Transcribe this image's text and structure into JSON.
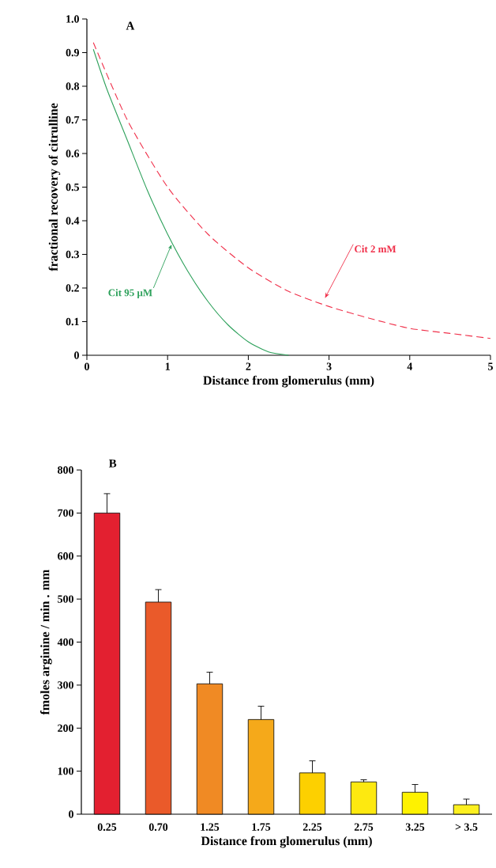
{
  "chart_data": [
    {
      "type": "line",
      "title": "A",
      "xlabel": "Distance from glomerulus (mm)",
      "ylabel": "fractional recovery of citrulline",
      "xlim": [
        0,
        5
      ],
      "xticks": [
        0,
        1,
        2,
        3,
        4,
        5
      ],
      "ylim": [
        0,
        1.0
      ],
      "yticks": [
        0,
        0.1,
        0.2,
        0.3,
        0.4,
        0.5,
        0.6,
        0.7,
        0.8,
        0.9,
        {
          "value": 1.0,
          "label": "1.0"
        }
      ],
      "marker": "none",
      "grid": false,
      "series": [
        {
          "name": "Cit 95 µM",
          "color": "#2ca05a",
          "line_style": "solid",
          "x": [
            0.08,
            0.25,
            0.5,
            0.75,
            1.0,
            1.25,
            1.5,
            1.75,
            2.0,
            2.25,
            2.5
          ],
          "values": [
            0.91,
            0.79,
            0.64,
            0.49,
            0.36,
            0.25,
            0.16,
            0.09,
            0.04,
            0.01,
            0.0
          ]
        },
        {
          "name": "Cit 2 mM",
          "color": "#f0304a",
          "line_style": "dashed",
          "x": [
            0.08,
            0.5,
            1.0,
            1.5,
            2.0,
            2.5,
            3.0,
            3.5,
            4.0,
            4.5,
            5.0
          ],
          "values": [
            0.93,
            0.7,
            0.5,
            0.36,
            0.26,
            0.19,
            0.145,
            0.11,
            0.08,
            0.065,
            0.05
          ]
        }
      ]
    },
    {
      "type": "bar",
      "title": "B",
      "xlabel": "Distance from glomerulus (mm)",
      "ylabel": "fmoles arginine / min . mm",
      "categories": [
        "0.25",
        "0.70",
        "1.25",
        "1.75",
        "2.25",
        "2.75",
        "3.25",
        "> 3.5"
      ],
      "values": [
        700,
        493,
        303,
        220,
        96,
        75,
        51,
        22
      ],
      "errors": [
        [
          700,
          745
        ],
        [
          493,
          522
        ],
        [
          303,
          330
        ],
        [
          220,
          251
        ],
        [
          96,
          124
        ],
        [
          75,
          80
        ],
        [
          51,
          69
        ],
        [
          22,
          35
        ]
      ],
      "colors": [
        "#e32030",
        "#ea5a2a",
        "#f08a24",
        "#f5a91a",
        "#fdd000",
        "#fde910",
        "#fef200",
        "#fdf020"
      ],
      "ylim": [
        0,
        800
      ],
      "yticks": [
        0,
        100,
        200,
        300,
        400,
        500,
        600,
        700,
        800
      ],
      "grid": false
    }
  ]
}
